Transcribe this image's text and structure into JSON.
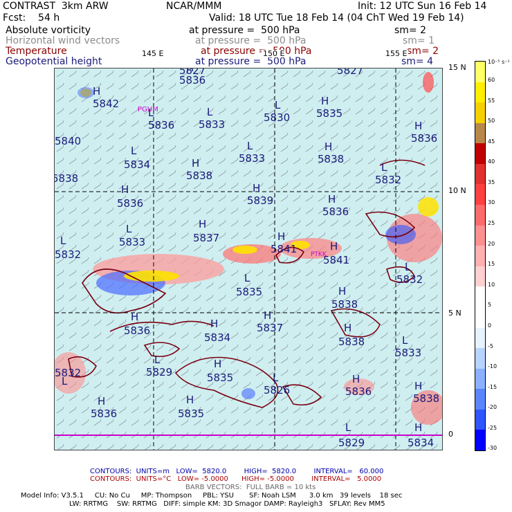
{
  "header": {
    "line1_left": "CONTRAST  3km ARW",
    "line1_center": "NCAR/MMM",
    "line1_right": "Init: 12 UTC Sun 16 Feb 14",
    "line2_left": "Fcst:    54 h",
    "line2_right": "Valid: 18 UTC Tue 18 Feb 14 (04 ChT Wed 19 Feb 14)"
  },
  "fields": [
    {
      "name": "Absolute vorticity",
      "pressure": "at pressure =  500 hPa",
      "sm": "sm= 2",
      "color": "#000000"
    },
    {
      "name": "Horizontal wind vectors",
      "pressure": "at pressure =  500 hPa",
      "sm": "sm= 1",
      "color": "#8c8c8c"
    },
    {
      "name": "Temperature",
      "pressure": "at pressure =  500 hPa",
      "sm": "sm= 2",
      "color": "#8b0000"
    },
    {
      "name": "Geopotential height",
      "pressure": "at pressure =  500 hPa",
      "sm": "sm= 4",
      "color": "#1a1a7a"
    }
  ],
  "map": {
    "lon_labels": [
      "145 E",
      "150 E",
      "155 E"
    ],
    "lat_labels": [
      "15 N",
      "10 N",
      "5 N",
      "0"
    ],
    "stations": [
      "PGUM",
      "PTKK"
    ],
    "hl_labels": [
      {
        "t": "H",
        "v": "5842"
      },
      {
        "t": "H",
        "v": "5836"
      },
      {
        "t": "L",
        "v": "5836"
      },
      {
        "t": "L",
        "v": "5833"
      },
      {
        "t": "L",
        "v": "5830"
      },
      {
        "t": "H",
        "v": "5835"
      },
      {
        "t": "H",
        "v": "5836"
      },
      {
        "t": "L",
        "v": "5834"
      },
      {
        "t": "H",
        "v": "5838"
      },
      {
        "t": "L",
        "v": "5833"
      },
      {
        "t": "H",
        "v": "5838"
      },
      {
        "t": "L",
        "v": "5832"
      },
      {
        "t": "H",
        "v": "5836"
      },
      {
        "t": "H",
        "v": "5839"
      },
      {
        "t": "H",
        "v": "5836"
      },
      {
        "t": "L",
        "v": "5833"
      },
      {
        "t": "H",
        "v": "5837"
      },
      {
        "t": "H",
        "v": "5841"
      },
      {
        "t": "H",
        "v": "5841"
      },
      {
        "t": "L",
        "v": "5832"
      },
      {
        "t": "L",
        "v": "5835"
      },
      {
        "t": "H",
        "v": "5838"
      },
      {
        "t": "L",
        "v": "5832"
      },
      {
        "t": "H",
        "v": "5836"
      },
      {
        "t": "H",
        "v": "5834"
      },
      {
        "t": "H",
        "v": "5837"
      },
      {
        "t": "H",
        "v": "5838"
      },
      {
        "t": "L",
        "v": "5833"
      },
      {
        "t": "L",
        "v": "5829"
      },
      {
        "t": "H",
        "v": "5835"
      },
      {
        "t": "L",
        "v": "5826"
      },
      {
        "t": "H",
        "v": "5836"
      },
      {
        "t": "H",
        "v": "5836"
      },
      {
        "t": "H",
        "v": "5835"
      },
      {
        "t": "L",
        "v": "5829"
      },
      {
        "t": "H",
        "v": "5834"
      },
      {
        "t": "L",
        "v": "5832"
      },
      {
        "t": "",
        "v": "5840"
      },
      {
        "t": "",
        "v": "5838"
      },
      {
        "t": "",
        "v": "5827"
      },
      {
        "t": "",
        "v": "5827"
      },
      {
        "t": "H",
        "v": "5838"
      }
    ]
  },
  "colorbar": {
    "unit": "10⁻⁵ s⁻¹",
    "labels": [
      "60",
      "55",
      "50",
      "45",
      "40",
      "35",
      "30",
      "25",
      "20",
      "15",
      "10",
      "5",
      "0",
      "-5",
      "-10",
      "-15",
      "-20",
      "-25",
      "-30"
    ],
    "colors": [
      "#ffff66",
      "#ffee00",
      "#f5d000",
      "#b8874a",
      "#c00000",
      "#e03030",
      "#ff4040",
      "#ff6b6b",
      "#ff9090",
      "#ffb0b0",
      "#ffd0d0",
      "#ffffff",
      "#ffffff",
      "#e6f3ff",
      "#b7d4ff",
      "#8ab0ff",
      "#5b85ff",
      "#2f55ff",
      "#0000ff"
    ]
  },
  "footer": {
    "contour1": "CONTOURS:  UNITS=m   LOW=  5820.0        HIGH=  5820.0        INTERVAL=   60.000",
    "contour2": "CONTOURS:  UNITS=°C   LOW= -5.0000      HIGH= -5.0000        INTERVAL=   5.0000",
    "barb": "BARB VECTORS:  FULL BARB = 10 kts",
    "model1": "Model Info: V3.5.1     CU: No Cu     MP: Thompson     PBL: YSU       SF: Noah LSM      3.0 km   39 levels    18 sec",
    "model2": "LW: RRTMG    SW: RRTMG   DIFF: simple KM: 3D Smagor DAMP: Rayleigh3   SFLAY: Rev MM5"
  }
}
